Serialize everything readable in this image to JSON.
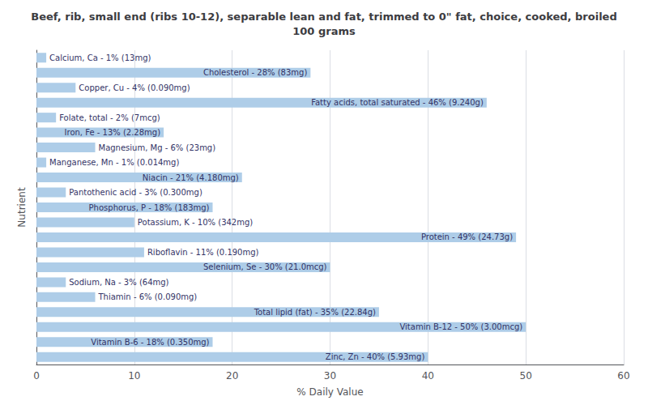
{
  "chart_data": {
    "type": "bar",
    "orientation": "horizontal",
    "title": "Beef, rib, small end (ribs 10-12), separable lean and fat, trimmed to 0\" fat, choice, cooked, broiled\n100 grams",
    "xlabel": "% Daily Value",
    "ylabel": "Nutrient",
    "categories": [
      "Calcium, Ca - 1% (13mg)",
      "Cholesterol - 28% (83mg)",
      "Copper, Cu - 4% (0.090mg)",
      "Fatty acids, total saturated - 46% (9.240g)",
      "Folate, total - 2% (7mcg)",
      "Iron, Fe - 13% (2.28mg)",
      "Magnesium, Mg - 6% (23mg)",
      "Manganese, Mn - 1% (0.014mg)",
      "Niacin - 21% (4.180mg)",
      "Pantothenic acid - 3% (0.300mg)",
      "Phosphorus, P - 18% (183mg)",
      "Potassium, K - 10% (342mg)",
      "Protein - 49% (24.73g)",
      "Riboflavin - 11% (0.190mg)",
      "Selenium, Se - 30% (21.0mcg)",
      "Sodium, Na - 3% (64mg)",
      "Thiamin - 6% (0.090mg)",
      "Total lipid (fat) - 35% (22.84g)",
      "Vitamin B-12 - 50% (3.00mcg)",
      "Vitamin B-6 - 18% (0.350mg)",
      "Zinc, Zn - 40% (5.93mg)"
    ],
    "values": [
      1,
      28,
      4,
      46,
      2,
      13,
      6,
      1,
      21,
      3,
      18,
      10,
      49,
      11,
      30,
      3,
      6,
      35,
      50,
      18,
      40
    ],
    "color": "#aecde8",
    "xlim": [
      0,
      60
    ],
    "xticks": [
      0,
      10,
      20,
      30,
      40,
      50,
      60
    ],
    "grid": true,
    "tick_labels": "x"
  }
}
